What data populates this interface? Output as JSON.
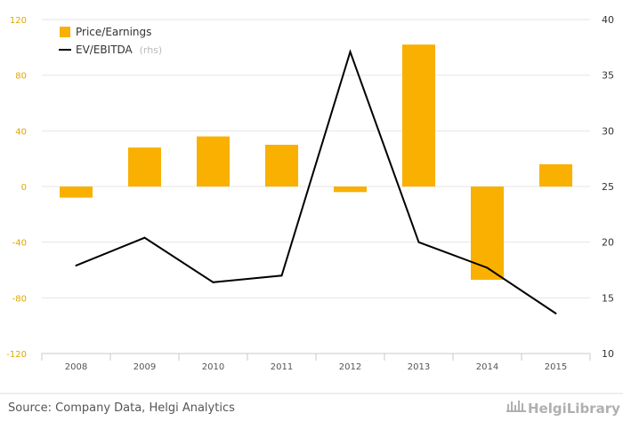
{
  "chart_data": {
    "type": "bar",
    "categories": [
      "2008",
      "2009",
      "2010",
      "2011",
      "2012",
      "2013",
      "2014",
      "2015"
    ],
    "series": [
      {
        "name": "Price/Earnings",
        "type": "bar",
        "axis": "left",
        "color": "#f9b000",
        "values": [
          -8,
          28,
          36,
          30,
          -4,
          102,
          -67,
          16
        ]
      },
      {
        "name": "EV/EBITDA",
        "name_suffix": "(rhs)",
        "type": "line",
        "axis": "right",
        "color": "#000000",
        "values": [
          17.9,
          20.4,
          16.4,
          17.0,
          37.1,
          20.0,
          17.7,
          13.6
        ]
      }
    ],
    "ylim_left": [
      -120,
      120
    ],
    "yticks_left": [
      "120",
      "80",
      "40",
      "0",
      "-40",
      "-80",
      "-120"
    ],
    "ylim_right": [
      10,
      40
    ],
    "yticks_right": [
      "40",
      "35",
      "30",
      "25",
      "20",
      "15",
      "10"
    ],
    "grid": true,
    "legend_position": "top-left"
  },
  "footer": {
    "source": "Source: Company Data, Helgi Analytics",
    "logo": "HelgiLibrary"
  }
}
